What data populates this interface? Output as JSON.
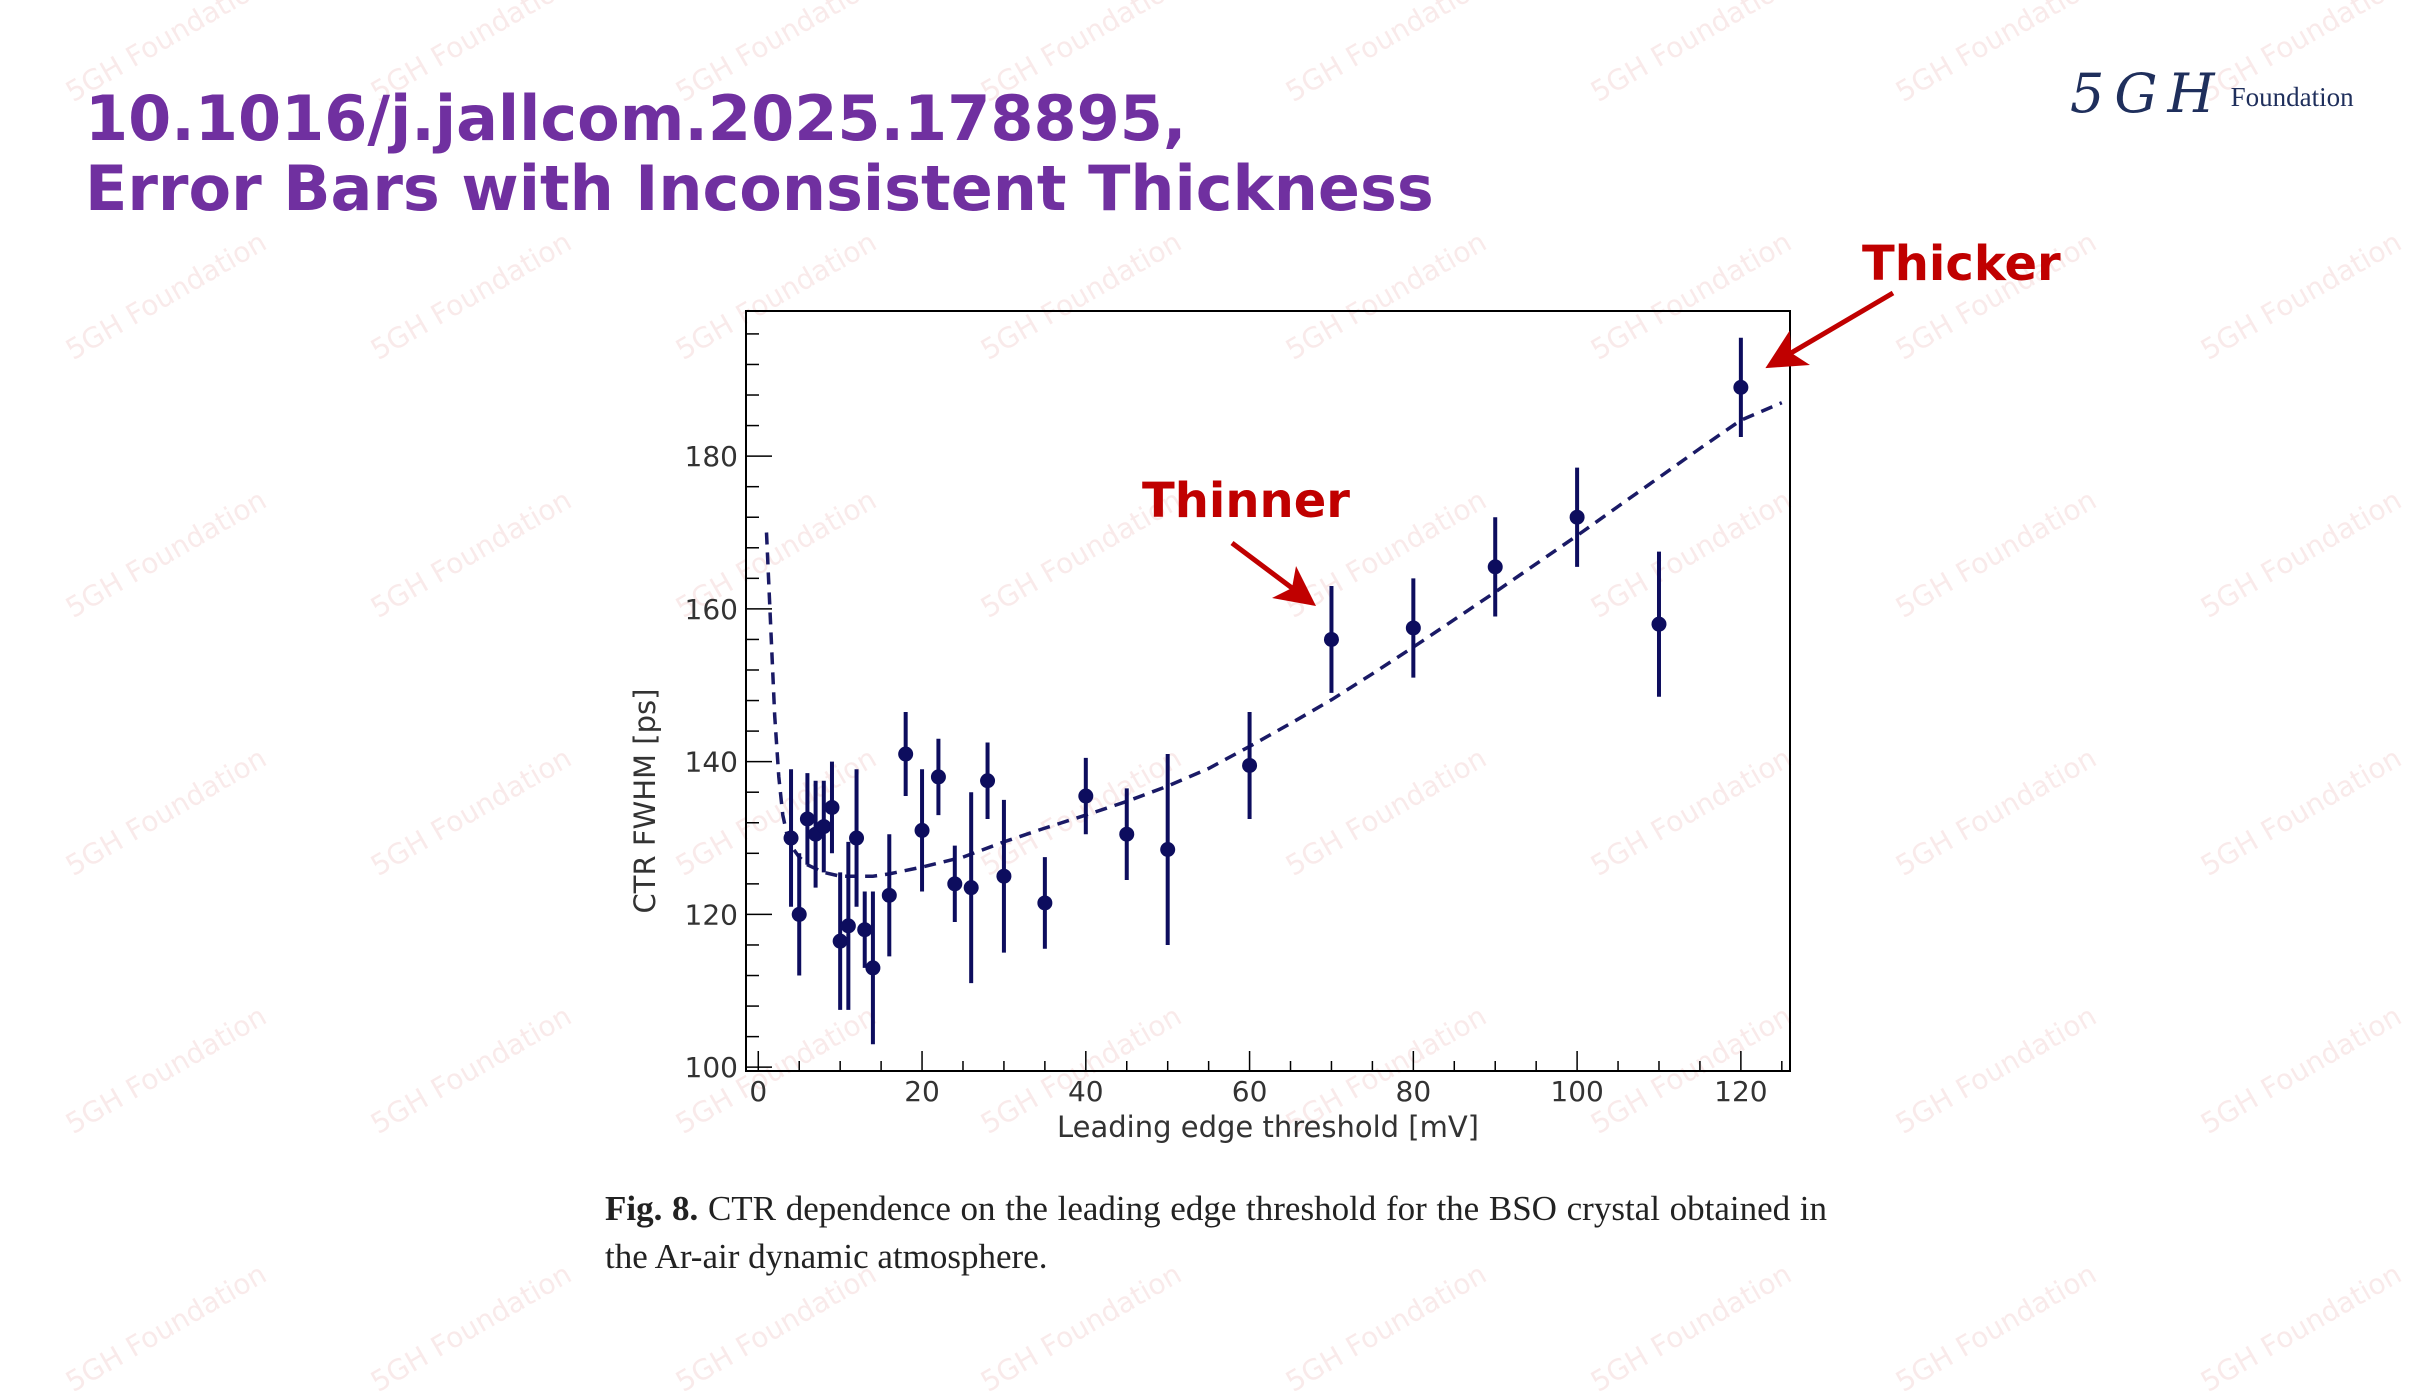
{
  "slide": {
    "title_line1": "10.1016/j.jallcom.2025.178895,",
    "title_line2": "Error Bars with Inconsistent Thickness",
    "logo_mark": "5GH",
    "logo_text": "Foundation",
    "watermark": "5GH Foundation",
    "accent_color": "#7030a0",
    "annotation_color": "#c00000"
  },
  "figure": {
    "caption_label": "Fig. 8.",
    "caption_text": "CTR dependence on the leading edge threshold for the BSO crystal obtained in the Ar-air dynamic atmosphere."
  },
  "annotations": [
    {
      "label": "Thinner",
      "target_x": 70,
      "target_y": 156
    },
    {
      "label": "Thicker",
      "target_x": 120,
      "target_y": 189
    }
  ],
  "chart_data": {
    "type": "scatter",
    "xlabel": "Leading edge threshold [mV]",
    "ylabel": "CTR FWHM [ps]",
    "xlim": [
      -1.5,
      126
    ],
    "ylim": [
      99.5,
      199
    ],
    "xticks": [
      0,
      20,
      40,
      60,
      80,
      100,
      120
    ],
    "yticks": [
      100,
      120,
      140,
      160,
      180
    ],
    "xtick_labels": [
      "0",
      "20",
      "40",
      "60",
      "80",
      "100",
      "120"
    ],
    "ytick_labels": [
      "100",
      "120",
      "140",
      "160",
      "180"
    ],
    "grid": false,
    "marker_color": "#0d0d5e",
    "fit_color": "#1a1a66",
    "points": [
      {
        "x": 4,
        "y": 130,
        "err": 9
      },
      {
        "x": 5,
        "y": 120,
        "err": 8
      },
      {
        "x": 6,
        "y": 132.5,
        "err": 6
      },
      {
        "x": 7,
        "y": 130.5,
        "err": 7
      },
      {
        "x": 8,
        "y": 131.5,
        "err": 6
      },
      {
        "x": 9,
        "y": 134,
        "err": 6
      },
      {
        "x": 10,
        "y": 116.5,
        "err": 9
      },
      {
        "x": 11,
        "y": 118.5,
        "err": 11
      },
      {
        "x": 12,
        "y": 130,
        "err": 9
      },
      {
        "x": 13,
        "y": 118,
        "err": 5
      },
      {
        "x": 14,
        "y": 113,
        "err": 10
      },
      {
        "x": 16,
        "y": 122.5,
        "err": 8
      },
      {
        "x": 18,
        "y": 141,
        "err": 5.5
      },
      {
        "x": 20,
        "y": 131,
        "err": 8
      },
      {
        "x": 22,
        "y": 138,
        "err": 5
      },
      {
        "x": 24,
        "y": 124,
        "err": 5
      },
      {
        "x": 26,
        "y": 123.5,
        "err": 12.5
      },
      {
        "x": 28,
        "y": 137.5,
        "err": 5
      },
      {
        "x": 30,
        "y": 125,
        "err": 10
      },
      {
        "x": 35,
        "y": 121.5,
        "err": 6
      },
      {
        "x": 40,
        "y": 135.5,
        "err": 5
      },
      {
        "x": 45,
        "y": 130.5,
        "err": 6
      },
      {
        "x": 50,
        "y": 128.5,
        "err": 12.5
      },
      {
        "x": 60,
        "y": 139.5,
        "err": 7
      },
      {
        "x": 70,
        "y": 156,
        "err": 7
      },
      {
        "x": 80,
        "y": 157.5,
        "err": 6.5
      },
      {
        "x": 90,
        "y": 165.5,
        "err": 6.5
      },
      {
        "x": 100,
        "y": 172,
        "err": 6.5
      },
      {
        "x": 110,
        "y": 158,
        "err": 9.5
      },
      {
        "x": 120,
        "y": 189,
        "err": 6.5
      }
    ],
    "fit_curve": {
      "x": [
        1,
        1.5,
        2,
        2.5,
        3,
        3.5,
        4,
        5,
        6,
        8,
        10,
        12,
        14,
        16,
        20,
        25,
        30,
        35,
        40,
        45,
        50,
        55,
        60,
        65,
        70,
        75,
        80,
        85,
        90,
        95,
        100,
        105,
        110,
        115,
        120,
        125
      ],
      "y": [
        170,
        158,
        146,
        138,
        133,
        130.5,
        129,
        127.5,
        126.5,
        125.5,
        125,
        125,
        125,
        125.3,
        126.2,
        127.5,
        129.5,
        131.3,
        133,
        134.8,
        136.8,
        139.1,
        142,
        145,
        148.1,
        151.5,
        155,
        158.6,
        162.2,
        165.9,
        169.6,
        173.4,
        177.2,
        181,
        184.7,
        187
      ]
    }
  }
}
